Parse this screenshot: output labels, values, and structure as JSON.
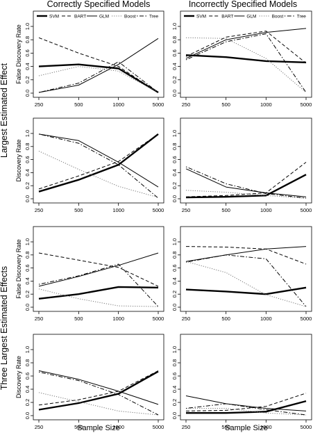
{
  "column_titles": [
    "Correctly Specified Models",
    "Incorrectly Specified Models"
  ],
  "row_group_labels": [
    "Largest Estimated Effect",
    "Three Largest Estimated Effects"
  ],
  "x_axis_label": "Sample Size",
  "legend": [
    {
      "name": "SVM",
      "style": "thick-solid"
    },
    {
      "name": "BART",
      "style": "dashed"
    },
    {
      "name": "GLM",
      "style": "solid"
    },
    {
      "name": "Boost",
      "style": "dotted"
    },
    {
      "name": "Tree",
      "style": "dotdash"
    }
  ],
  "chart_data": [
    {
      "type": "line",
      "row": 0,
      "col": 0,
      "ylabel": "False Discovery Rate",
      "categories": [
        "250",
        "500",
        "1000",
        "5000"
      ],
      "ylim": [
        0,
        1
      ],
      "yticks": [
        "0.0",
        "0.2",
        "0.4",
        "0.6",
        "0.8",
        "1.0"
      ],
      "legend": "top",
      "series": [
        {
          "name": "SVM",
          "values": [
            0.4,
            0.43,
            0.37,
            0.01
          ]
        },
        {
          "name": "BART",
          "values": [
            0.83,
            0.6,
            0.4,
            0.01
          ]
        },
        {
          "name": "GLM",
          "values": [
            0.01,
            0.12,
            0.43,
            0.82
          ]
        },
        {
          "name": "Boost",
          "values": [
            0.26,
            0.4,
            0.33,
            0.01
          ]
        },
        {
          "name": "Tree",
          "values": [
            0.01,
            0.15,
            0.47,
            0.01
          ]
        }
      ]
    },
    {
      "type": "line",
      "row": 0,
      "col": 1,
      "ylabel": "",
      "categories": [
        "250",
        "500",
        "1000",
        "5000"
      ],
      "ylim": [
        0,
        1
      ],
      "yticks": [
        "0.0",
        "0.2",
        "0.4",
        "0.6",
        "0.8",
        "1.0"
      ],
      "legend": "top",
      "series": [
        {
          "name": "SVM",
          "values": [
            0.57,
            0.54,
            0.48,
            0.46
          ]
        },
        {
          "name": "BART",
          "values": [
            0.55,
            0.84,
            0.93,
            0.45
          ]
        },
        {
          "name": "GLM",
          "values": [
            0.52,
            0.8,
            0.91,
            0.97
          ]
        },
        {
          "name": "Boost",
          "values": [
            0.83,
            0.82,
            0.52,
            0.01
          ]
        },
        {
          "name": "Tree",
          "values": [
            0.5,
            0.77,
            0.89,
            0.01
          ]
        }
      ]
    },
    {
      "type": "line",
      "row": 1,
      "col": 0,
      "ylabel": "Discovery Rate",
      "categories": [
        "250",
        "500",
        "1000",
        "5000"
      ],
      "ylim": [
        0,
        1
      ],
      "yticks": [
        "0.0",
        "0.2",
        "0.4",
        "0.6",
        "0.8",
        "1.0"
      ],
      "series": [
        {
          "name": "SVM",
          "values": [
            0.11,
            0.29,
            0.52,
            0.99
          ]
        },
        {
          "name": "BART",
          "values": [
            0.15,
            0.35,
            0.57,
            0.99
          ]
        },
        {
          "name": "GLM",
          "values": [
            0.99,
            0.89,
            0.56,
            0.18
          ]
        },
        {
          "name": "Boost",
          "values": [
            0.73,
            0.45,
            0.19,
            0.02
          ]
        },
        {
          "name": "Tree",
          "values": [
            0.99,
            0.85,
            0.52,
            0.01
          ]
        }
      ]
    },
    {
      "type": "line",
      "row": 1,
      "col": 1,
      "ylabel": "",
      "categories": [
        "250",
        "500",
        "1000",
        "5000"
      ],
      "ylim": [
        0,
        1
      ],
      "yticks": [
        "0.0",
        "0.2",
        "0.4",
        "0.6",
        "0.8",
        "1.0"
      ],
      "series": [
        {
          "name": "SVM",
          "values": [
            0.02,
            0.03,
            0.05,
            0.37
          ]
        },
        {
          "name": "BART",
          "values": [
            0.03,
            0.05,
            0.09,
            0.56
          ]
        },
        {
          "name": "GLM",
          "values": [
            0.46,
            0.18,
            0.09,
            0.03
          ]
        },
        {
          "name": "Boost",
          "values": [
            0.13,
            0.1,
            0.05,
            0.01
          ]
        },
        {
          "name": "Tree",
          "values": [
            0.49,
            0.23,
            0.08,
            0.01
          ]
        }
      ]
    },
    {
      "type": "line",
      "row": 2,
      "col": 0,
      "ylabel": "False Discovery Rate",
      "categories": [
        "250",
        "500",
        "1000",
        "5000"
      ],
      "ylim": [
        0,
        1
      ],
      "yticks": [
        "0.0",
        "0.2",
        "0.4",
        "0.6",
        "0.8",
        "1.0"
      ],
      "series": [
        {
          "name": "SVM",
          "values": [
            0.13,
            0.2,
            0.31,
            0.3
          ]
        },
        {
          "name": "BART",
          "values": [
            0.83,
            0.72,
            0.61,
            0.32
          ]
        },
        {
          "name": "GLM",
          "values": [
            0.32,
            0.47,
            0.64,
            0.83
          ]
        },
        {
          "name": "Boost",
          "values": [
            0.28,
            0.13,
            0.02,
            0.01
          ]
        },
        {
          "name": "Tree",
          "values": [
            0.35,
            0.48,
            0.66,
            0.01
          ]
        }
      ]
    },
    {
      "type": "line",
      "row": 2,
      "col": 1,
      "ylabel": "",
      "categories": [
        "250",
        "500",
        "1000",
        "5000"
      ],
      "ylim": [
        0,
        1
      ],
      "yticks": [
        "0.0",
        "0.2",
        "0.4",
        "0.6",
        "0.8",
        "1.0"
      ],
      "series": [
        {
          "name": "SVM",
          "values": [
            0.27,
            0.24,
            0.2,
            0.3
          ]
        },
        {
          "name": "BART",
          "values": [
            0.93,
            0.92,
            0.89,
            0.66
          ]
        },
        {
          "name": "GLM",
          "values": [
            0.7,
            0.8,
            0.89,
            0.93
          ]
        },
        {
          "name": "Boost",
          "values": [
            0.7,
            0.53,
            0.19,
            0.01
          ]
        },
        {
          "name": "Tree",
          "values": [
            0.69,
            0.8,
            0.74,
            0.01
          ]
        }
      ]
    },
    {
      "type": "line",
      "row": 3,
      "col": 0,
      "ylabel": "Discovery Rate",
      "categories": [
        "250",
        "500",
        "1000",
        "5000"
      ],
      "ylim": [
        0,
        1
      ],
      "yticks": [
        "0.0",
        "0.2",
        "0.4",
        "0.6",
        "0.8",
        "1.0"
      ],
      "series": [
        {
          "name": "SVM",
          "values": [
            0.09,
            0.19,
            0.33,
            0.67
          ]
        },
        {
          "name": "BART",
          "values": [
            0.16,
            0.24,
            0.37,
            0.68
          ]
        },
        {
          "name": "GLM",
          "values": [
            0.68,
            0.55,
            0.37,
            0.17
          ]
        },
        {
          "name": "Boost",
          "values": [
            0.35,
            0.21,
            0.07,
            0.01
          ]
        },
        {
          "name": "Tree",
          "values": [
            0.66,
            0.53,
            0.32,
            0.01
          ]
        }
      ]
    },
    {
      "type": "line",
      "row": 3,
      "col": 1,
      "ylabel": "",
      "categories": [
        "250",
        "500",
        "1000",
        "5000"
      ],
      "ylim": [
        0,
        1
      ],
      "yticks": [
        "0.0",
        "0.2",
        "0.4",
        "0.6",
        "0.8",
        "1.0"
      ],
      "series": [
        {
          "name": "SVM",
          "values": [
            0.04,
            0.04,
            0.06,
            0.22
          ]
        },
        {
          "name": "BART",
          "values": [
            0.07,
            0.08,
            0.14,
            0.34
          ]
        },
        {
          "name": "GLM",
          "values": [
            0.3,
            0.18,
            0.11,
            0.07
          ]
        },
        {
          "name": "Boost",
          "values": [
            0.11,
            0.11,
            0.04,
            0.01
          ]
        },
        {
          "name": "Tree",
          "values": [
            0.11,
            0.18,
            0.09,
            0.01
          ]
        }
      ]
    }
  ]
}
